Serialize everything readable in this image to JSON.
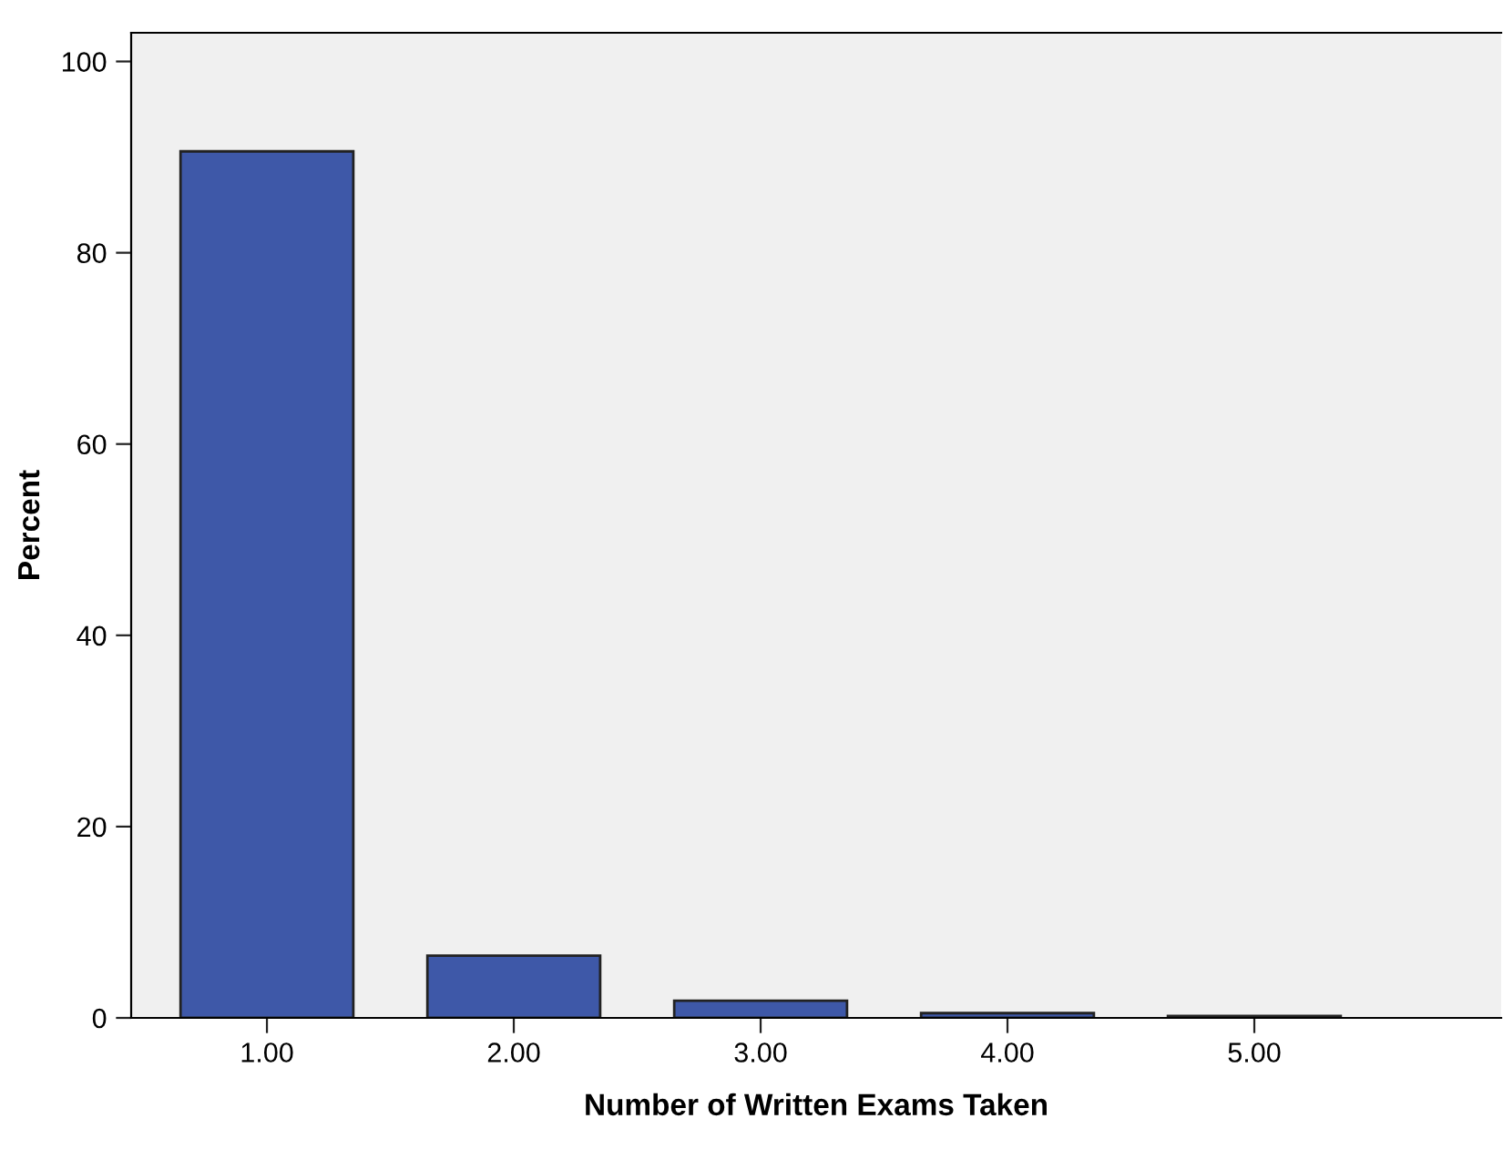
{
  "chart_data": {
    "type": "bar",
    "xlabel": "Number of Written Exams Taken",
    "ylabel": "Percent",
    "categories": [
      "1.00",
      "2.00",
      "3.00",
      "4.00",
      "5.00"
    ],
    "values": [
      90.6,
      6.5,
      1.8,
      0.5,
      0.2
    ],
    "color": "#3e58a8",
    "ylim": [
      0,
      103
    ],
    "yticks": [
      0,
      20,
      40,
      60,
      80,
      100
    ],
    "grid": false
  }
}
